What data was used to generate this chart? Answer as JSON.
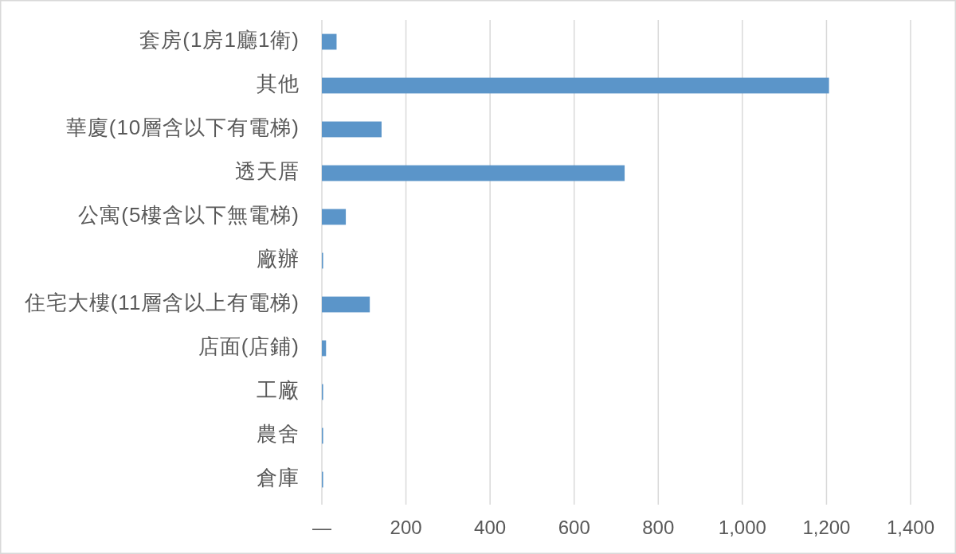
{
  "chart_data": {
    "type": "bar",
    "orientation": "horizontal",
    "categories": [
      "套房(1房1廳1衛)",
      "其他",
      "華廈(10層含以下有電梯)",
      "透天厝",
      "公寓(5樓含以下無電梯)",
      "廠辦",
      "住宅大樓(11層含以上有電梯)",
      "店面(店鋪)",
      "工廠",
      "農舍",
      "倉庫"
    ],
    "values": [
      35,
      1206,
      142,
      720,
      57,
      3,
      114,
      10,
      3,
      3,
      3
    ],
    "color": "#5b95c9",
    "xlim": [
      0,
      1400
    ],
    "xticks": [
      {
        "value": 0,
        "label": "—"
      },
      200,
      400,
      600,
      800,
      {
        "value": 1000,
        "label": "1,000"
      },
      {
        "value": 1200,
        "label": "1,200"
      },
      {
        "value": 1400,
        "label": "1,400"
      }
    ],
    "grid": "x"
  }
}
